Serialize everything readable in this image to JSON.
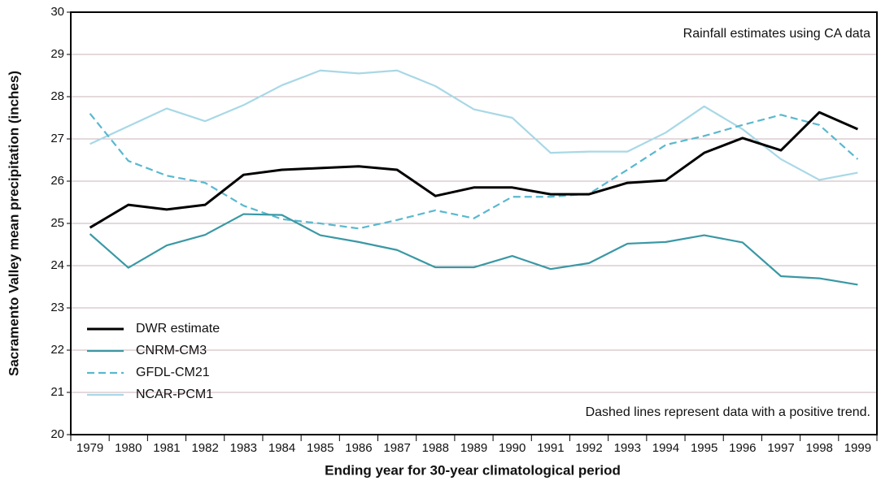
{
  "chart_data": {
    "type": "line",
    "x_label": "Ending year for 30-year climatological period",
    "y_label": "Sacramento Valley mean precipitation (inches)",
    "annotations": [
      "Rainfall estimates using CA data",
      "Dashed lines represent data with a positive trend."
    ],
    "categories": [
      "1979",
      "1980",
      "1981",
      "1982",
      "1983",
      "1984",
      "1985",
      "1986",
      "1987",
      "1988",
      "1989",
      "1990",
      "1991",
      "1992",
      "1993",
      "1994",
      "1995",
      "1996",
      "1997",
      "1998",
      "1999"
    ],
    "series": [
      {
        "name": "DWR estimate",
        "color": "#000000",
        "dashed": false,
        "values": [
          24.9,
          25.44,
          25.33,
          25.44,
          26.15,
          26.27,
          26.31,
          26.35,
          26.27,
          25.65,
          25.85,
          25.85,
          25.69,
          25.69,
          25.96,
          26.02,
          26.67,
          27.02,
          26.73,
          27.63,
          27.23
        ]
      },
      {
        "name": "CNRM-CM3",
        "color": "#3a98a4",
        "dashed": false,
        "values": [
          24.75,
          23.95,
          24.48,
          24.73,
          25.22,
          25.2,
          24.72,
          24.56,
          24.37,
          23.96,
          23.96,
          24.23,
          23.92,
          24.06,
          24.52,
          24.56,
          24.72,
          24.55,
          23.75,
          23.7,
          23.55
        ]
      },
      {
        "name": "GFDL-CM21",
        "color": "#5ab8cf",
        "dashed": true,
        "values": [
          27.6,
          26.48,
          26.13,
          25.96,
          25.42,
          25.1,
          25.0,
          24.88,
          25.08,
          25.31,
          25.12,
          25.63,
          25.63,
          25.7,
          26.27,
          26.86,
          27.07,
          27.33,
          27.57,
          27.33,
          26.52
        ]
      },
      {
        "name": "NCAR-PCM1",
        "color": "#a8d8e6",
        "dashed": false,
        "values": [
          26.88,
          27.3,
          27.72,
          27.42,
          27.8,
          28.27,
          28.62,
          28.55,
          28.62,
          28.25,
          27.7,
          27.5,
          26.67,
          26.7,
          26.7,
          27.15,
          27.77,
          27.23,
          26.52,
          26.03,
          26.2
        ]
      }
    ],
    "ylim": [
      20,
      30
    ],
    "yticks": [
      20,
      21,
      22,
      23,
      24,
      25,
      26,
      27,
      28,
      29,
      30
    ],
    "grid": true,
    "legend": "lower left"
  }
}
